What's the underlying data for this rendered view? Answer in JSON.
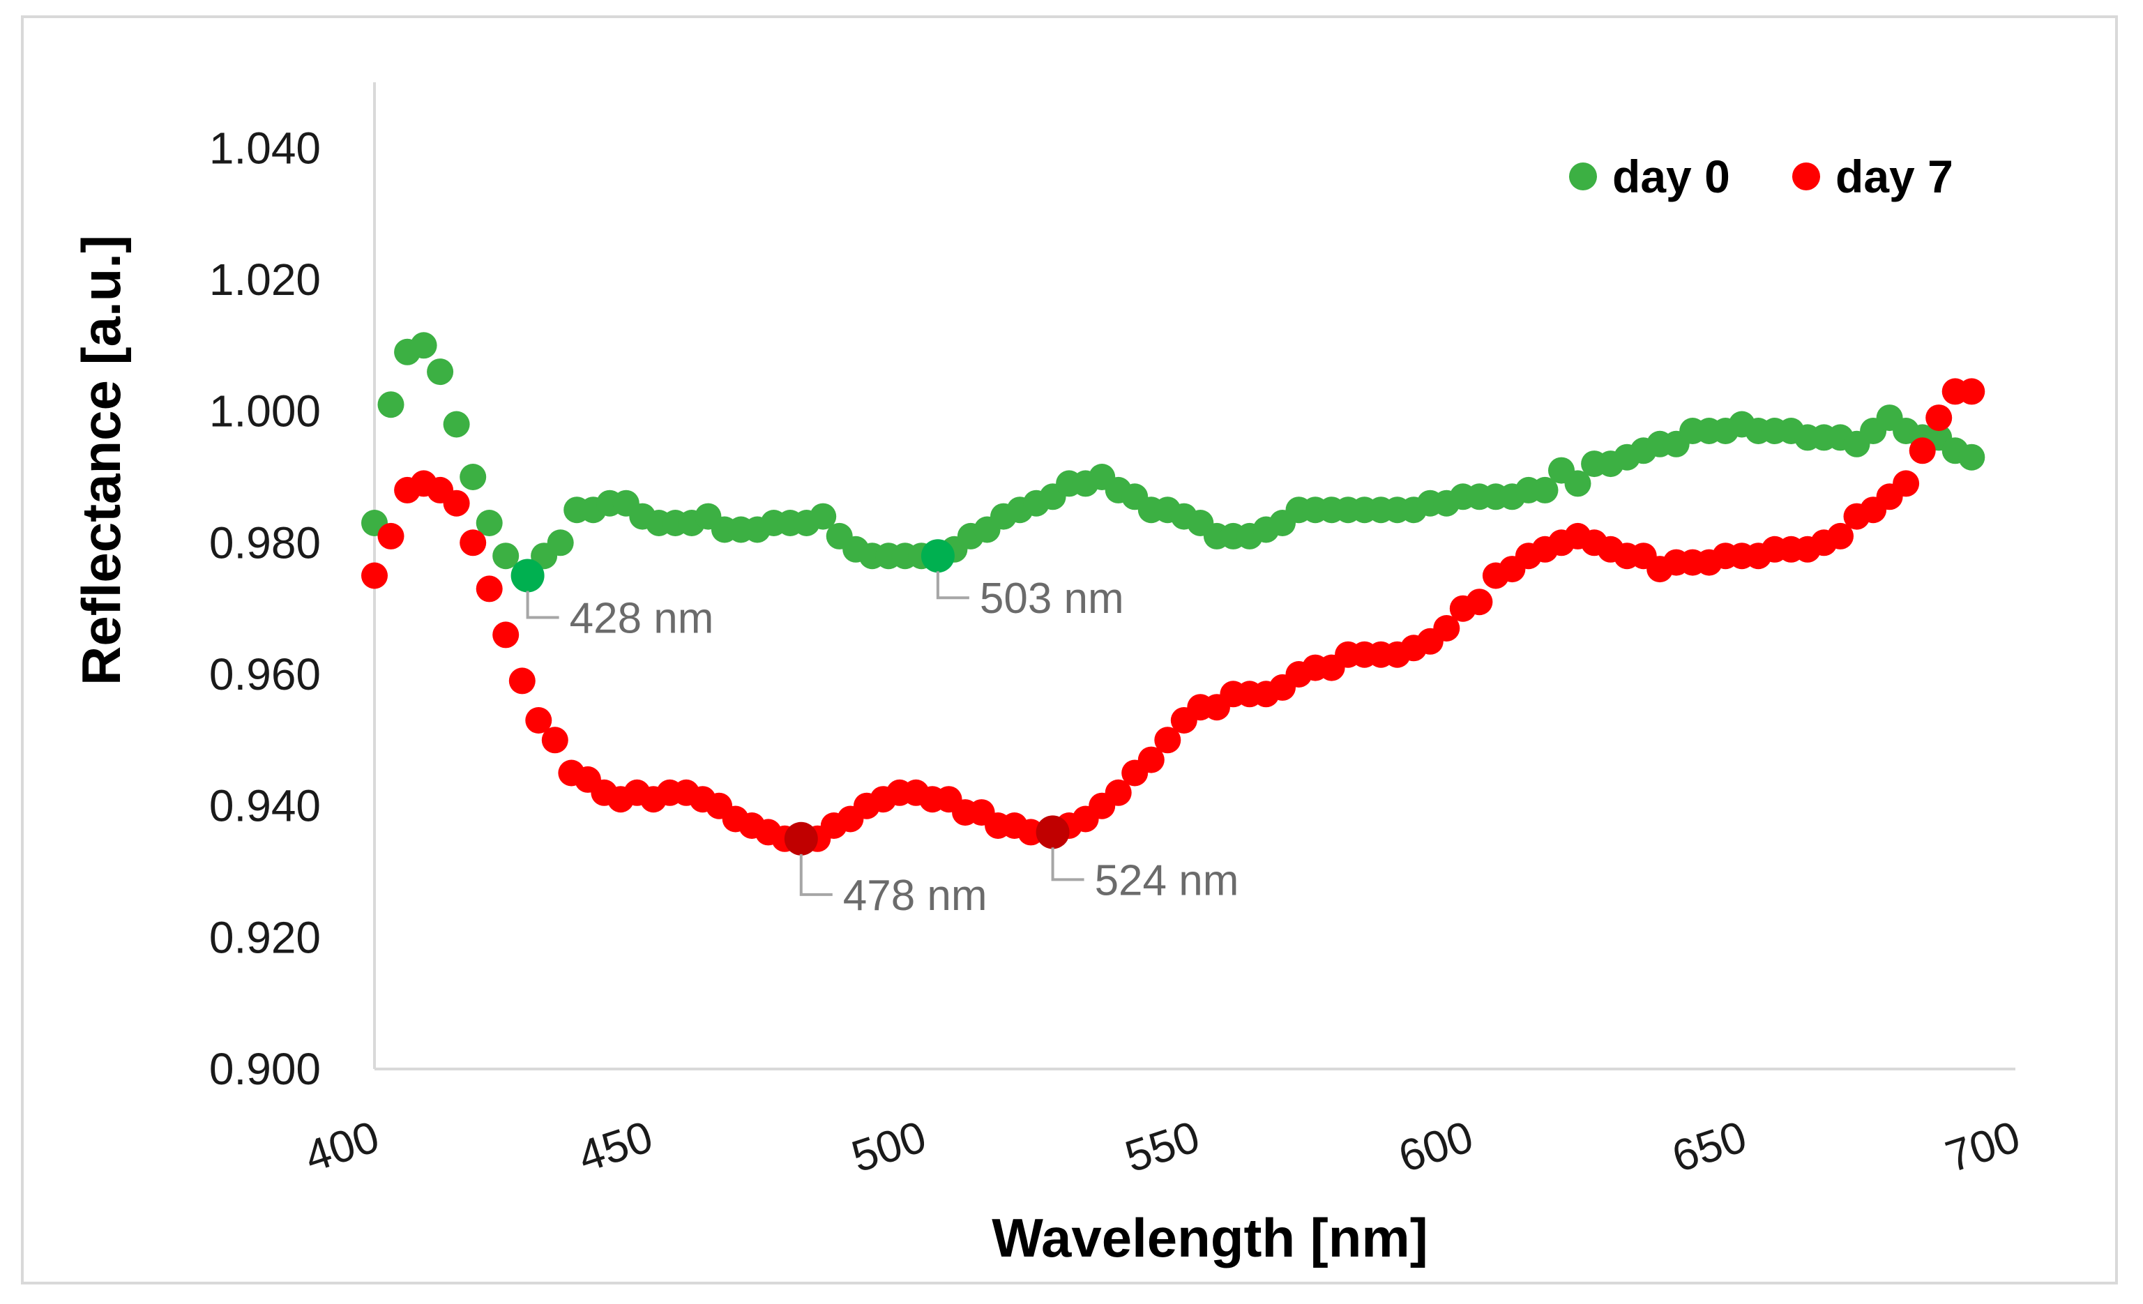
{
  "chart_data": {
    "type": "scatter",
    "title": "",
    "xlabel": "Wavelength [nm]",
    "ylabel": "Reflectance [a.u.]",
    "xlim": [
      400,
      700
    ],
    "ylim": [
      0.9,
      1.05
    ],
    "x_ticks": [
      "400",
      "450",
      "500",
      "550",
      "600",
      "650",
      "700"
    ],
    "y_ticks": [
      "0.900",
      "0.920",
      "0.940",
      "0.960",
      "0.980",
      "1.000",
      "1.020",
      "1.040"
    ],
    "legend": {
      "position": "top-right"
    },
    "series": [
      {
        "name": "day 0",
        "color": "#3cb043",
        "points": [
          [
            400,
            0.983
          ],
          [
            403,
            1.001
          ],
          [
            406,
            1.009
          ],
          [
            409,
            1.01
          ],
          [
            412,
            1.006
          ],
          [
            415,
            0.998
          ],
          [
            418,
            0.99
          ],
          [
            421,
            0.983
          ],
          [
            424,
            0.978
          ],
          [
            428,
            0.975
          ],
          [
            431,
            0.978
          ],
          [
            434,
            0.98
          ],
          [
            437,
            0.985
          ],
          [
            440,
            0.985
          ],
          [
            443,
            0.986
          ],
          [
            446,
            0.986
          ],
          [
            449,
            0.984
          ],
          [
            452,
            0.983
          ],
          [
            455,
            0.983
          ],
          [
            458,
            0.983
          ],
          [
            461,
            0.984
          ],
          [
            464,
            0.982
          ],
          [
            467,
            0.982
          ],
          [
            470,
            0.982
          ],
          [
            473,
            0.983
          ],
          [
            476,
            0.983
          ],
          [
            479,
            0.983
          ],
          [
            482,
            0.984
          ],
          [
            485,
            0.981
          ],
          [
            488,
            0.979
          ],
          [
            491,
            0.978
          ],
          [
            494,
            0.978
          ],
          [
            497,
            0.978
          ],
          [
            500,
            0.978
          ],
          [
            503,
            0.978
          ],
          [
            506,
            0.979
          ],
          [
            509,
            0.981
          ],
          [
            512,
            0.982
          ],
          [
            515,
            0.984
          ],
          [
            518,
            0.985
          ],
          [
            521,
            0.986
          ],
          [
            524,
            0.987
          ],
          [
            527,
            0.989
          ],
          [
            530,
            0.989
          ],
          [
            533,
            0.99
          ],
          [
            536,
            0.988
          ],
          [
            539,
            0.987
          ],
          [
            542,
            0.985
          ],
          [
            545,
            0.985
          ],
          [
            548,
            0.984
          ],
          [
            551,
            0.983
          ],
          [
            554,
            0.981
          ],
          [
            557,
            0.981
          ],
          [
            560,
            0.981
          ],
          [
            563,
            0.982
          ],
          [
            566,
            0.983
          ],
          [
            569,
            0.985
          ],
          [
            572,
            0.985
          ],
          [
            575,
            0.985
          ],
          [
            578,
            0.985
          ],
          [
            581,
            0.985
          ],
          [
            584,
            0.985
          ],
          [
            587,
            0.985
          ],
          [
            590,
            0.985
          ],
          [
            593,
            0.986
          ],
          [
            596,
            0.986
          ],
          [
            599,
            0.987
          ],
          [
            602,
            0.987
          ],
          [
            605,
            0.987
          ],
          [
            608,
            0.987
          ],
          [
            611,
            0.988
          ],
          [
            614,
            0.988
          ],
          [
            617,
            0.991
          ],
          [
            620,
            0.989
          ],
          [
            623,
            0.992
          ],
          [
            626,
            0.992
          ],
          [
            629,
            0.993
          ],
          [
            632,
            0.994
          ],
          [
            635,
            0.995
          ],
          [
            638,
            0.995
          ],
          [
            641,
            0.997
          ],
          [
            644,
            0.997
          ],
          [
            647,
            0.997
          ],
          [
            650,
            0.998
          ],
          [
            653,
            0.997
          ],
          [
            656,
            0.997
          ],
          [
            659,
            0.997
          ],
          [
            662,
            0.996
          ],
          [
            665,
            0.996
          ],
          [
            668,
            0.996
          ],
          [
            671,
            0.995
          ],
          [
            674,
            0.997
          ],
          [
            677,
            0.999
          ],
          [
            680,
            0.997
          ],
          [
            683,
            0.996
          ],
          [
            686,
            0.996
          ],
          [
            689,
            0.994
          ],
          [
            692,
            0.993
          ]
        ]
      },
      {
        "name": "day 7",
        "color": "#ff0000",
        "points": [
          [
            400,
            0.975
          ],
          [
            403,
            0.981
          ],
          [
            406,
            0.988
          ],
          [
            409,
            0.989
          ],
          [
            412,
            0.988
          ],
          [
            415,
            0.986
          ],
          [
            418,
            0.98
          ],
          [
            421,
            0.973
          ],
          [
            424,
            0.966
          ],
          [
            427,
            0.959
          ],
          [
            430,
            0.953
          ],
          [
            433,
            0.95
          ],
          [
            436,
            0.945
          ],
          [
            439,
            0.944
          ],
          [
            442,
            0.942
          ],
          [
            445,
            0.941
          ],
          [
            448,
            0.942
          ],
          [
            451,
            0.941
          ],
          [
            454,
            0.942
          ],
          [
            457,
            0.942
          ],
          [
            460,
            0.941
          ],
          [
            463,
            0.94
          ],
          [
            466,
            0.938
          ],
          [
            469,
            0.937
          ],
          [
            472,
            0.936
          ],
          [
            475,
            0.935
          ],
          [
            478,
            0.935
          ],
          [
            481,
            0.935
          ],
          [
            484,
            0.937
          ],
          [
            487,
            0.938
          ],
          [
            490,
            0.94
          ],
          [
            493,
            0.941
          ],
          [
            496,
            0.942
          ],
          [
            499,
            0.942
          ],
          [
            502,
            0.941
          ],
          [
            505,
            0.941
          ],
          [
            508,
            0.939
          ],
          [
            511,
            0.939
          ],
          [
            514,
            0.937
          ],
          [
            517,
            0.937
          ],
          [
            520,
            0.936
          ],
          [
            524,
            0.936
          ],
          [
            527,
            0.937
          ],
          [
            530,
            0.938
          ],
          [
            533,
            0.94
          ],
          [
            536,
            0.942
          ],
          [
            539,
            0.945
          ],
          [
            542,
            0.947
          ],
          [
            545,
            0.95
          ],
          [
            548,
            0.953
          ],
          [
            551,
            0.955
          ],
          [
            554,
            0.955
          ],
          [
            557,
            0.957
          ],
          [
            560,
            0.957
          ],
          [
            563,
            0.957
          ],
          [
            566,
            0.958
          ],
          [
            569,
            0.96
          ],
          [
            572,
            0.961
          ],
          [
            575,
            0.961
          ],
          [
            578,
            0.963
          ],
          [
            581,
            0.963
          ],
          [
            584,
            0.963
          ],
          [
            587,
            0.963
          ],
          [
            590,
            0.964
          ],
          [
            593,
            0.965
          ],
          [
            596,
            0.967
          ],
          [
            599,
            0.97
          ],
          [
            602,
            0.971
          ],
          [
            605,
            0.975
          ],
          [
            608,
            0.976
          ],
          [
            611,
            0.978
          ],
          [
            614,
            0.979
          ],
          [
            617,
            0.98
          ],
          [
            620,
            0.981
          ],
          [
            623,
            0.98
          ],
          [
            626,
            0.979
          ],
          [
            629,
            0.978
          ],
          [
            632,
            0.978
          ],
          [
            635,
            0.976
          ],
          [
            638,
            0.977
          ],
          [
            641,
            0.977
          ],
          [
            644,
            0.977
          ],
          [
            647,
            0.978
          ],
          [
            650,
            0.978
          ],
          [
            653,
            0.978
          ],
          [
            656,
            0.979
          ],
          [
            659,
            0.979
          ],
          [
            662,
            0.979
          ],
          [
            665,
            0.98
          ],
          [
            668,
            0.981
          ],
          [
            671,
            0.984
          ],
          [
            674,
            0.985
          ],
          [
            677,
            0.987
          ],
          [
            680,
            0.989
          ],
          [
            683,
            0.994
          ],
          [
            686,
            0.999
          ],
          [
            689,
            1.003
          ],
          [
            692,
            1.003
          ]
        ]
      }
    ],
    "annotations": [
      {
        "label": "428 nm",
        "series": "day 0",
        "x": 428,
        "y": 0.975
      },
      {
        "label": "503 nm",
        "series": "day 0",
        "x": 503,
        "y": 0.978
      },
      {
        "label": "478 nm",
        "series": "day 7",
        "x": 478,
        "y": 0.935
      },
      {
        "label": "524 nm",
        "series": "day 7",
        "x": 524,
        "y": 0.936
      }
    ]
  },
  "colors": {
    "axis": "#d9d9d9",
    "annotation_leader": "#a6a6a6",
    "annotation_text": "#6b6b6b",
    "highlight_day0": "#00b050",
    "highlight_day7": "#c00000"
  }
}
